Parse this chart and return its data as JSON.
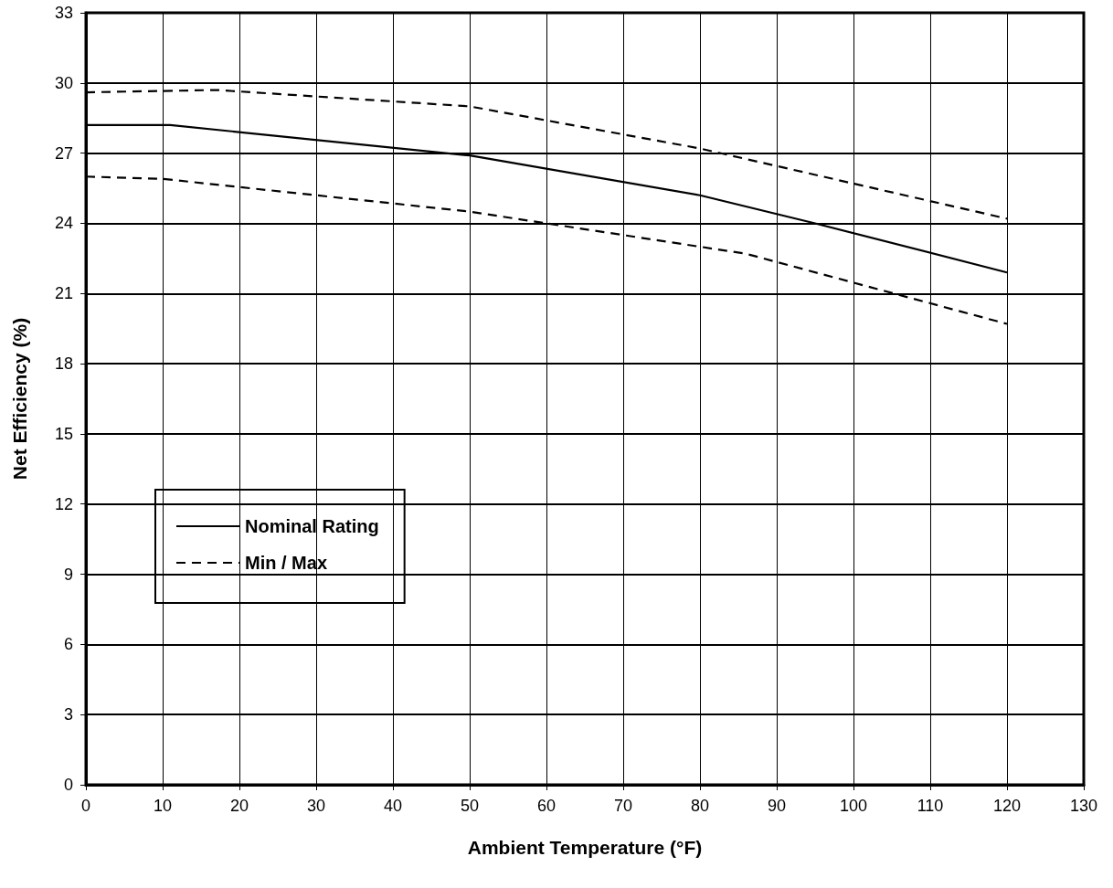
{
  "chart_data": {
    "type": "line",
    "xlabel": "Ambient Temperature (°F)",
    "ylabel": "Net Efficiency (%)",
    "xlim": [
      0,
      130
    ],
    "xticks": [
      0,
      10,
      20,
      30,
      40,
      50,
      60,
      70,
      80,
      90,
      100,
      110,
      120,
      130
    ],
    "ylim": [
      0,
      33
    ],
    "yticks": [
      0,
      3,
      6,
      9,
      12,
      15,
      18,
      21,
      24,
      27,
      30,
      33
    ],
    "grid": true,
    "legend": "bottom left",
    "series": [
      {
        "name": "Nominal Rating",
        "color": "#000000",
        "line_style": "solid",
        "x": [
          0,
          11,
          50,
          80,
          95,
          120
        ],
        "values": [
          28.2,
          28.2,
          26.9,
          25.2,
          24.0,
          21.9
        ]
      },
      {
        "name": "Min / Max",
        "color": "#000000",
        "line_style": "dashed",
        "x": [
          0,
          10,
          50,
          80,
          86,
          120
        ],
        "values": [
          26.0,
          25.9,
          24.5,
          23.0,
          22.7,
          19.7
        ]
      },
      {
        "color": "#000000",
        "line_style": "dashed",
        "x": [
          0,
          17,
          50,
          80,
          120
        ],
        "values": [
          29.6,
          29.7,
          29.0,
          27.2,
          24.2
        ]
      }
    ]
  }
}
